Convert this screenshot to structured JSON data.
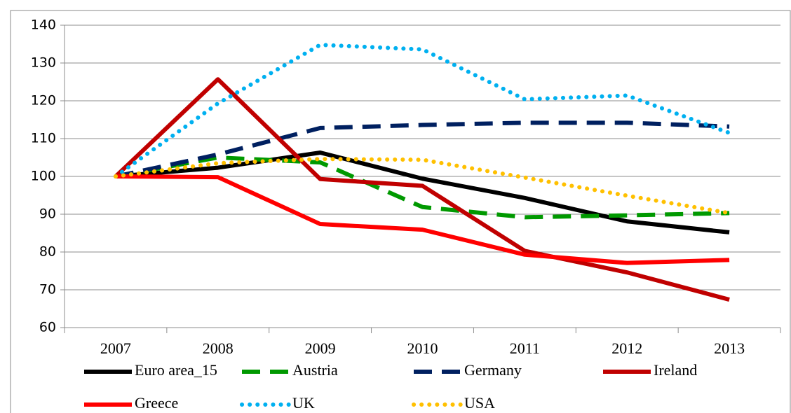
{
  "chart_data": {
    "type": "line",
    "categories": [
      "2007",
      "2008",
      "2009",
      "2010",
      "2011",
      "2012",
      "2013"
    ],
    "series": [
      {
        "name": "Euro area_15",
        "color": "#000000",
        "style": "solid",
        "values": [
          100,
          102.3,
          106.3,
          99.4,
          94.3,
          88.1,
          85.2
        ]
      },
      {
        "name": "Austria",
        "color": "#009900",
        "style": "dashed",
        "values": [
          100,
          105,
          103.7,
          91.9,
          89.2,
          89.7,
          90.3
        ]
      },
      {
        "name": "Germany",
        "color": "#002060",
        "style": "dashed",
        "values": [
          100,
          105.8,
          112.8,
          113.6,
          114.2,
          114.2,
          113.2
        ]
      },
      {
        "name": "Ireland",
        "color": "#c00000",
        "style": "solid",
        "values": [
          100,
          125.7,
          99.3,
          97.5,
          80.3,
          74.6,
          67.4
        ]
      },
      {
        "name": "Greece",
        "color": "#ff0000",
        "style": "solid",
        "values": [
          100,
          99.8,
          87.4,
          85.9,
          79.3,
          77.1,
          77.9
        ]
      },
      {
        "name": "UK",
        "color": "#00b0f0",
        "style": "dotted",
        "values": [
          100,
          119.3,
          134.8,
          133.6,
          120.4,
          121.4,
          111.5
        ]
      },
      {
        "name": "USA",
        "color": "#ffc000",
        "style": "dotted",
        "values": [
          100,
          103.5,
          104.6,
          104.4,
          99.7,
          94.9,
          90.3
        ]
      }
    ],
    "ylim": [
      60,
      140
    ],
    "yticks": [
      60,
      70,
      80,
      90,
      100,
      110,
      120,
      130,
      140
    ],
    "grid": true,
    "legend": "bottom"
  }
}
